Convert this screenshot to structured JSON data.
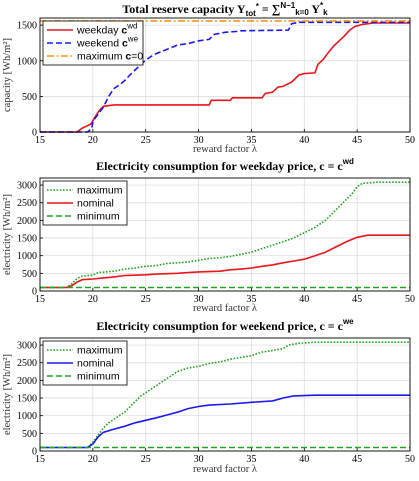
{
  "chart_data": [
    {
      "type": "line",
      "title_main": "Total reserve capacity Y",
      "title_sub": "tot",
      "title_sup": "*",
      "title_tail": " = ∑",
      "title_sum_upper": "N−1",
      "title_sum_lower": "k=0",
      "title_end": " Y",
      "title_end_sup": "*",
      "title_end_sub": "k",
      "xlabel": "reward factor λ",
      "ylabel": "capacity [Wh/m²]",
      "xlim": [
        15,
        50
      ],
      "ylim": [
        0,
        1600
      ],
      "xticks": [
        "15",
        "20",
        "25",
        "30",
        "35",
        "40",
        "45",
        "50"
      ],
      "yticks": [
        "0",
        "500",
        "1000",
        "1500"
      ],
      "grid": true,
      "legend_position": "top-left",
      "legend": [
        {
          "text": "weekday ",
          "bold": "c",
          "sup": "wd"
        },
        {
          "text": "weekend ",
          "bold": "c",
          "sup": "we"
        },
        {
          "text": "maximum ",
          "bold": "c",
          "tail": "=0"
        }
      ],
      "series": [
        {
          "name": "weekday c^wd",
          "color": "#e8161b",
          "dash": "solid",
          "points": [
            [
              15,
              0
            ],
            [
              18.5,
              0
            ],
            [
              19,
              55
            ],
            [
              19.8,
              110
            ],
            [
              20.2,
              210
            ],
            [
              20.6,
              300
            ],
            [
              21,
              360
            ],
            [
              22,
              380
            ],
            [
              31,
              380
            ],
            [
              31.2,
              445
            ],
            [
              33,
              445
            ],
            [
              33.2,
              480
            ],
            [
              36,
              480
            ],
            [
              36.3,
              540
            ],
            [
              37,
              560
            ],
            [
              37.5,
              630
            ],
            [
              38,
              640
            ],
            [
              38.8,
              700
            ],
            [
              39.5,
              800
            ],
            [
              40,
              820
            ],
            [
              41,
              830
            ],
            [
              41.3,
              950
            ],
            [
              41.8,
              1020
            ],
            [
              42.3,
              1120
            ],
            [
              42.8,
              1210
            ],
            [
              43.3,
              1280
            ],
            [
              43.8,
              1350
            ],
            [
              44.3,
              1430
            ],
            [
              44.8,
              1480
            ],
            [
              45.5,
              1510
            ],
            [
              46.5,
              1530
            ],
            [
              50,
              1530
            ]
          ]
        },
        {
          "name": "weekend c^we",
          "color": "#1a1aee",
          "dash": "dashed",
          "points": [
            [
              15,
              0
            ],
            [
              19.5,
              0
            ],
            [
              19.9,
              50
            ],
            [
              20,
              150
            ],
            [
              20.5,
              250
            ],
            [
              21,
              350
            ],
            [
              21.5,
              500
            ],
            [
              22,
              610
            ],
            [
              22.5,
              660
            ],
            [
              23,
              720
            ],
            [
              23.5,
              800
            ],
            [
              24,
              870
            ],
            [
              24.5,
              940
            ],
            [
              25,
              1010
            ],
            [
              25.5,
              1060
            ],
            [
              26,
              1100
            ],
            [
              27,
              1160
            ],
            [
              28,
              1220
            ],
            [
              29,
              1240
            ],
            [
              30,
              1280
            ],
            [
              31,
              1300
            ],
            [
              31.5,
              1370
            ],
            [
              32.5,
              1400
            ],
            [
              33.5,
              1410
            ],
            [
              34,
              1420
            ],
            [
              38.5,
              1430
            ],
            [
              38.8,
              1520
            ],
            [
              39.5,
              1540
            ],
            [
              50,
              1540
            ]
          ]
        },
        {
          "name": "maximum c=0",
          "color": "#f7941d",
          "dash": "dashdot",
          "points": [
            [
              15,
              1560
            ],
            [
              50,
              1560
            ]
          ]
        }
      ]
    },
    {
      "type": "line",
      "title_main": "Electricity consumption for weekday price, ",
      "title_bold": "c",
      "title_eq": " = ",
      "title_bold2": "c",
      "title_sup": "wd",
      "xlabel": "reward factor λ",
      "ylabel": "electricity [Wh/m²]",
      "xlim": [
        15,
        50
      ],
      "ylim": [
        0,
        3200
      ],
      "xticks": [
        "15",
        "20",
        "25",
        "30",
        "35",
        "40",
        "45",
        "50"
      ],
      "yticks": [
        "0",
        "500",
        "1000",
        "1500",
        "2000",
        "2500",
        "3000"
      ],
      "grid": true,
      "legend_position": "top-left",
      "legend": [
        {
          "text": "maximum"
        },
        {
          "text": "nominal"
        },
        {
          "text": "minimum"
        }
      ],
      "series": [
        {
          "name": "maximum",
          "color": "#22a322",
          "dash": "dotted",
          "points": [
            [
              15,
              100
            ],
            [
              17.5,
              100
            ],
            [
              18,
              200
            ],
            [
              18.5,
              350
            ],
            [
              19,
              420
            ],
            [
              20,
              450
            ],
            [
              20.5,
              520
            ],
            [
              22,
              560
            ],
            [
              23,
              620
            ],
            [
              24,
              650
            ],
            [
              25,
              700
            ],
            [
              26,
              720
            ],
            [
              27,
              780
            ],
            [
              28,
              800
            ],
            [
              29,
              820
            ],
            [
              30,
              870
            ],
            [
              31,
              920
            ],
            [
              32,
              940
            ],
            [
              33,
              980
            ],
            [
              34,
              1040
            ],
            [
              35,
              1100
            ],
            [
              36,
              1200
            ],
            [
              37,
              1300
            ],
            [
              38,
              1400
            ],
            [
              39,
              1500
            ],
            [
              40,
              1650
            ],
            [
              41,
              1800
            ],
            [
              41.5,
              1900
            ],
            [
              42,
              2000
            ],
            [
              42.5,
              2150
            ],
            [
              43,
              2300
            ],
            [
              43.5,
              2450
            ],
            [
              44,
              2600
            ],
            [
              44.5,
              2750
            ],
            [
              45,
              2950
            ],
            [
              45.5,
              3050
            ],
            [
              47,
              3080
            ],
            [
              50,
              3080
            ]
          ]
        },
        {
          "name": "nominal",
          "color": "#e8161b",
          "dash": "solid",
          "points": [
            [
              15,
              100
            ],
            [
              17.5,
              100
            ],
            [
              18,
              150
            ],
            [
              18.5,
              250
            ],
            [
              19,
              320
            ],
            [
              20,
              340
            ],
            [
              21,
              370
            ],
            [
              22,
              400
            ],
            [
              23,
              440
            ],
            [
              25,
              460
            ],
            [
              26,
              480
            ],
            [
              27,
              490
            ],
            [
              28,
              500
            ],
            [
              29,
              520
            ],
            [
              30,
              540
            ],
            [
              31,
              550
            ],
            [
              32,
              560
            ],
            [
              33,
              600
            ],
            [
              34,
              620
            ],
            [
              35,
              650
            ],
            [
              36,
              700
            ],
            [
              37,
              740
            ],
            [
              38,
              800
            ],
            [
              39,
              850
            ],
            [
              40,
              900
            ],
            [
              41,
              1000
            ],
            [
              42,
              1100
            ],
            [
              43,
              1250
            ],
            [
              44,
              1400
            ],
            [
              45,
              1520
            ],
            [
              46,
              1580
            ],
            [
              50,
              1580
            ]
          ]
        },
        {
          "name": "minimum",
          "color": "#22a322",
          "dash": "dashed",
          "points": [
            [
              15,
              100
            ],
            [
              50,
              100
            ]
          ]
        }
      ]
    },
    {
      "type": "line",
      "title_main": "Electricity consumption for weekend price, ",
      "title_bold": "c",
      "title_eq": " = ",
      "title_bold2": "c",
      "title_sup": "we",
      "xlabel": "reward factor λ",
      "ylabel": "electricity [Wh/m²]",
      "xlim": [
        15,
        50
      ],
      "ylim": [
        0,
        3200
      ],
      "xticks": [
        "15",
        "20",
        "25",
        "30",
        "35",
        "40",
        "45",
        "50"
      ],
      "yticks": [
        "0",
        "500",
        "1000",
        "1500",
        "2000",
        "2500",
        "3000"
      ],
      "grid": true,
      "legend_position": "top-left",
      "legend": [
        {
          "text": "maximum"
        },
        {
          "text": "nominal"
        },
        {
          "text": "minimum"
        }
      ],
      "series": [
        {
          "name": "maximum",
          "color": "#22a322",
          "dash": "dotted",
          "points": [
            [
              15,
              100
            ],
            [
              19.5,
              100
            ],
            [
              20,
              250
            ],
            [
              20.5,
              450
            ],
            [
              21,
              650
            ],
            [
              21.5,
              800
            ],
            [
              22,
              900
            ],
            [
              22.5,
              1000
            ],
            [
              23,
              1100
            ],
            [
              23.5,
              1250
            ],
            [
              24,
              1400
            ],
            [
              24.5,
              1550
            ],
            [
              25,
              1650
            ],
            [
              25.5,
              1750
            ],
            [
              26,
              1850
            ],
            [
              26.5,
              1950
            ],
            [
              27,
              2050
            ],
            [
              27.5,
              2150
            ],
            [
              28,
              2250
            ],
            [
              28.5,
              2300
            ],
            [
              29,
              2350
            ],
            [
              30,
              2400
            ],
            [
              31,
              2480
            ],
            [
              32,
              2520
            ],
            [
              33,
              2600
            ],
            [
              34,
              2650
            ],
            [
              35,
              2700
            ],
            [
              36,
              2800
            ],
            [
              37,
              2850
            ],
            [
              38,
              2900
            ],
            [
              38.5,
              3000
            ],
            [
              39.5,
              3050
            ],
            [
              41,
              3080
            ],
            [
              50,
              3080
            ]
          ]
        },
        {
          "name": "nominal",
          "color": "#1a1aee",
          "dash": "solid",
          "points": [
            [
              15,
              100
            ],
            [
              19.5,
              100
            ],
            [
              20,
              200
            ],
            [
              20.5,
              400
            ],
            [
              21,
              530
            ],
            [
              22,
              620
            ],
            [
              23,
              700
            ],
            [
              24,
              800
            ],
            [
              25,
              870
            ],
            [
              26,
              940
            ],
            [
              27,
              1020
            ],
            [
              28,
              1100
            ],
            [
              29,
              1200
            ],
            [
              30,
              1260
            ],
            [
              31,
              1300
            ],
            [
              33,
              1330
            ],
            [
              35,
              1380
            ],
            [
              37,
              1420
            ],
            [
              38,
              1500
            ],
            [
              39,
              1560
            ],
            [
              41,
              1580
            ],
            [
              50,
              1580
            ]
          ]
        },
        {
          "name": "minimum",
          "color": "#22a322",
          "dash": "dashed",
          "points": [
            [
              15,
              100
            ],
            [
              50,
              100
            ]
          ]
        }
      ]
    }
  ]
}
